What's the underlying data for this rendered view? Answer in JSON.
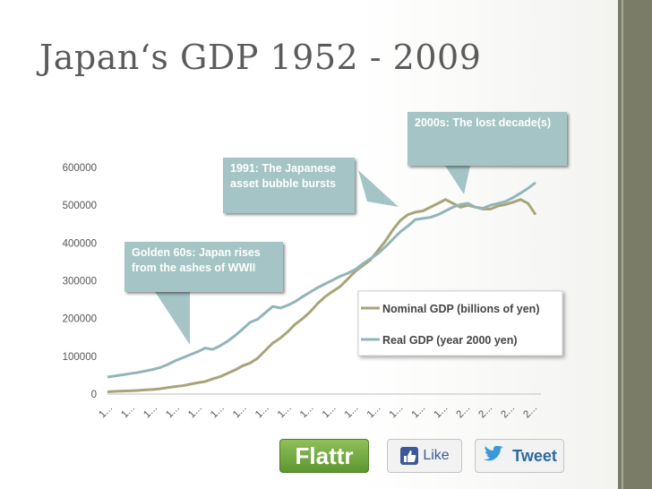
{
  "slide": {
    "title": "Japan‘s GDP 1952 - 2009",
    "colors": {
      "title": "#5b5b5b",
      "callout_fill": "#a5c4c5",
      "stripe": "#7b7c68"
    }
  },
  "callouts": {
    "lost_decade": "2000s: The lost decade(s)",
    "bubble": "1991: The Japanese asset bubble bursts",
    "sixties": "Golden 60s: Japan rises from the ashes of WWII"
  },
  "share": {
    "flattr_label": "Flattr",
    "like_label": "Like",
    "tweet_label": "Tweet",
    "icons": {
      "like": "thumbs-up-icon",
      "tweet": "bird-icon"
    }
  },
  "chart_data": {
    "type": "line",
    "title": "",
    "xlabel": "",
    "ylabel": "",
    "ylim": [
      0,
      600000
    ],
    "yticks": [
      0,
      100000,
      200000,
      300000,
      400000,
      500000,
      600000
    ],
    "xtick_labels": [
      "1...",
      "1...",
      "1...",
      "1...",
      "1...",
      "1...",
      "1...",
      "1...",
      "1...",
      "1...",
      "1...",
      "1...",
      "1...",
      "1...",
      "1...",
      "1...",
      "2...",
      "2...",
      "2...",
      "2..."
    ],
    "x": [
      1952,
      1953,
      1954,
      1955,
      1956,
      1957,
      1958,
      1959,
      1960,
      1961,
      1962,
      1963,
      1964,
      1965,
      1966,
      1967,
      1968,
      1969,
      1970,
      1971,
      1972,
      1973,
      1974,
      1975,
      1976,
      1977,
      1978,
      1979,
      1980,
      1981,
      1982,
      1983,
      1984,
      1985,
      1986,
      1987,
      1988,
      1989,
      1990,
      1991,
      1992,
      1993,
      1994,
      1995,
      1996,
      1997,
      1998,
      1999,
      2000,
      2001,
      2002,
      2003,
      2004,
      2005,
      2006,
      2007,
      2008,
      2009
    ],
    "grid": false,
    "legend_position": "right",
    "series": [
      {
        "name": "Nominal GDP (billions of yen)",
        "color": "#a8a47a",
        "values": [
          6000,
          7000,
          8000,
          8500,
          9500,
          11000,
          12000,
          14000,
          17000,
          20000,
          22000,
          26000,
          30000,
          33000,
          40000,
          46000,
          55000,
          64000,
          75000,
          82000,
          95000,
          115000,
          135000,
          148000,
          165000,
          185000,
          200000,
          218000,
          240000,
          258000,
          272000,
          285000,
          305000,
          325000,
          340000,
          355000,
          380000,
          405000,
          435000,
          460000,
          475000,
          482000,
          485000,
          495000,
          505000,
          515000,
          505000,
          495000,
          500000,
          495000,
          490000,
          490000,
          498000,
          502000,
          508000,
          515000,
          505000,
          475000
        ]
      },
      {
        "name": "Real GDP (year 2000 yen)",
        "color": "#93b5b7",
        "values": [
          45000,
          48000,
          51000,
          54000,
          57000,
          61000,
          65000,
          70000,
          78000,
          88000,
          96000,
          104000,
          112000,
          122000,
          118000,
          128000,
          140000,
          155000,
          172000,
          190000,
          198000,
          215000,
          232000,
          228000,
          235000,
          245000,
          258000,
          270000,
          282000,
          292000,
          302000,
          312000,
          320000,
          330000,
          345000,
          358000,
          372000,
          390000,
          410000,
          430000,
          445000,
          462000,
          465000,
          468000,
          475000,
          485000,
          495000,
          502000,
          505000,
          495000,
          492000,
          500000,
          505000,
          510000,
          520000,
          532000,
          545000,
          560000
        ]
      }
    ]
  }
}
